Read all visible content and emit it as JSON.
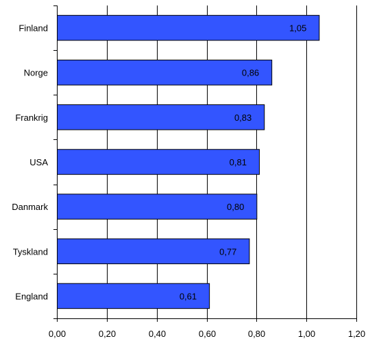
{
  "chart_data": {
    "type": "bar",
    "orientation": "horizontal",
    "title": "",
    "xlabel": "",
    "ylabel": "",
    "categories": [
      "Finland",
      "Norge",
      "Frankrig",
      "USA",
      "Danmark",
      "Tyskland",
      "England"
    ],
    "values": [
      1.05,
      0.86,
      0.83,
      0.81,
      0.8,
      0.77,
      0.61
    ],
    "value_labels": [
      "1,05",
      "0,86",
      "0,83",
      "0,81",
      "0,80",
      "0,77",
      "0,61"
    ],
    "xlim": [
      0,
      1.2
    ],
    "xticks": [
      0,
      0.2,
      0.4,
      0.6,
      0.8,
      1.0,
      1.2
    ],
    "xtick_labels": [
      "0,00",
      "0,20",
      "0,40",
      "0,60",
      "0,80",
      "1,00",
      "1,20"
    ],
    "grid": "vertical",
    "legend": "none",
    "colors": {
      "bar": "#3355ff",
      "bar_border": "#000000",
      "grid": "#000000"
    }
  }
}
